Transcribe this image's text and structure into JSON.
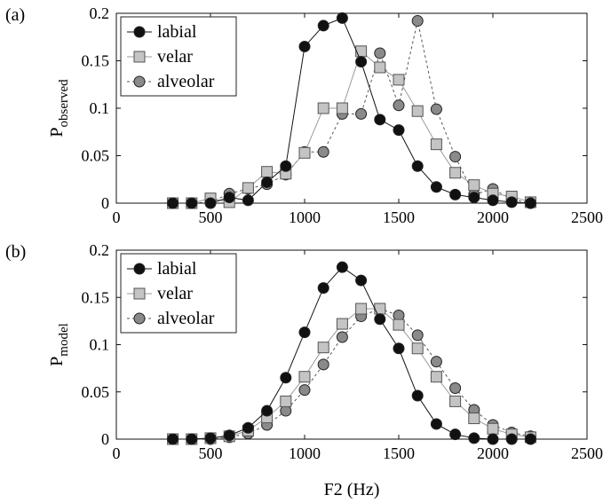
{
  "chart_data": [
    {
      "type": "line",
      "panel_label": "(a)",
      "ylabel_main": "P",
      "ylabel_sub": "observed",
      "xlabel": "",
      "xlim": [
        0,
        2500
      ],
      "ylim": [
        0,
        0.2
      ],
      "xticks": [
        "0",
        "500",
        "1000",
        "1500",
        "2000",
        "2500"
      ],
      "yticks": [
        "0",
        "0.05",
        "0.1",
        "0.15",
        "0.2"
      ],
      "legend_position": "top-left",
      "series": [
        {
          "name": "labial",
          "marker": "circle",
          "fill": "#111111",
          "line_color": "#111111",
          "dash": "solid",
          "x": [
            300,
            400,
            500,
            600,
            700,
            800,
            900,
            1000,
            1100,
            1200,
            1300,
            1400,
            1500,
            1600,
            1700,
            1800,
            1900,
            2000,
            2100,
            2200
          ],
          "y": [
            0,
            0,
            0,
            0.006,
            0.003,
            0.022,
            0.039,
            0.165,
            0.187,
            0.195,
            0.149,
            0.088,
            0.077,
            0.039,
            0.017,
            0.009,
            0.006,
            0.003,
            0.001,
            0
          ]
        },
        {
          "name": "velar",
          "marker": "square",
          "fill": "#c4c4c4",
          "line_color": "#9a9a9a",
          "dash": "solid",
          "x": [
            300,
            400,
            500,
            600,
            700,
            800,
            900,
            1000,
            1100,
            1200,
            1300,
            1400,
            1500,
            1600,
            1700,
            1800,
            1900,
            2000,
            2100,
            2200
          ],
          "y": [
            0,
            0,
            0.005,
            0.001,
            0.016,
            0.033,
            0.031,
            0.053,
            0.1,
            0.1,
            0.16,
            0.143,
            0.13,
            0.097,
            0.062,
            0.032,
            0.019,
            0.01,
            0.007,
            0.001
          ]
        },
        {
          "name": "alveolar",
          "marker": "circle",
          "fill": "#8a8a8a",
          "line_color": "#555555",
          "dash": "dashed",
          "x": [
            300,
            400,
            500,
            600,
            700,
            800,
            900,
            1000,
            1100,
            1200,
            1300,
            1400,
            1500,
            1600,
            1700,
            1800,
            1900,
            2000,
            2100,
            2200
          ],
          "y": [
            0,
            0,
            0.001,
            0.01,
            0.015,
            0.02,
            0.03,
            0.054,
            0.054,
            0.094,
            0.094,
            0.158,
            0.103,
            0.192,
            0.099,
            0.049,
            0.009,
            0.015,
            0.004,
            0
          ]
        }
      ]
    },
    {
      "type": "line",
      "panel_label": "(b)",
      "ylabel_main": "P",
      "ylabel_sub": "model",
      "xlabel": "F2 (Hz)",
      "xlim": [
        0,
        2500
      ],
      "ylim": [
        0,
        0.2
      ],
      "xticks": [
        "0",
        "500",
        "1000",
        "1500",
        "2000",
        "2500"
      ],
      "yticks": [
        "0",
        "0.05",
        "0.1",
        "0.15",
        "0.2"
      ],
      "legend_position": "top-left",
      "series": [
        {
          "name": "labial",
          "marker": "circle",
          "fill": "#111111",
          "line_color": "#111111",
          "dash": "solid",
          "x": [
            300,
            400,
            500,
            600,
            700,
            800,
            900,
            1000,
            1100,
            1200,
            1300,
            1400,
            1500,
            1600,
            1700,
            1800,
            1900,
            2000,
            2100,
            2200
          ],
          "y": [
            0,
            0,
            0.001,
            0.004,
            0.012,
            0.03,
            0.065,
            0.113,
            0.16,
            0.182,
            0.168,
            0.127,
            0.096,
            0.046,
            0.016,
            0.005,
            0.001,
            0,
            0,
            0
          ]
        },
        {
          "name": "velar",
          "marker": "square",
          "fill": "#c4c4c4",
          "line_color": "#9a9a9a",
          "dash": "solid",
          "x": [
            300,
            400,
            500,
            600,
            700,
            800,
            900,
            1000,
            1100,
            1200,
            1300,
            1400,
            1500,
            1600,
            1700,
            1800,
            1900,
            2000,
            2100,
            2200
          ],
          "y": [
            0,
            0,
            0.001,
            0.003,
            0.009,
            0.023,
            0.04,
            0.066,
            0.097,
            0.122,
            0.138,
            0.138,
            0.121,
            0.096,
            0.066,
            0.04,
            0.022,
            0.011,
            0.005,
            0.002
          ]
        },
        {
          "name": "alveolar",
          "marker": "circle",
          "fill": "#8a8a8a",
          "line_color": "#555555",
          "dash": "dashed",
          "x": [
            300,
            400,
            500,
            600,
            700,
            800,
            900,
            1000,
            1100,
            1200,
            1300,
            1400,
            1500,
            1600,
            1700,
            1800,
            1900,
            2000,
            2100,
            2200
          ],
          "y": [
            0,
            0,
            0,
            0.002,
            0.006,
            0.015,
            0.03,
            0.052,
            0.079,
            0.108,
            0.13,
            0.138,
            0.131,
            0.11,
            0.082,
            0.054,
            0.031,
            0.015,
            0.007,
            0.003
          ]
        }
      ]
    }
  ]
}
